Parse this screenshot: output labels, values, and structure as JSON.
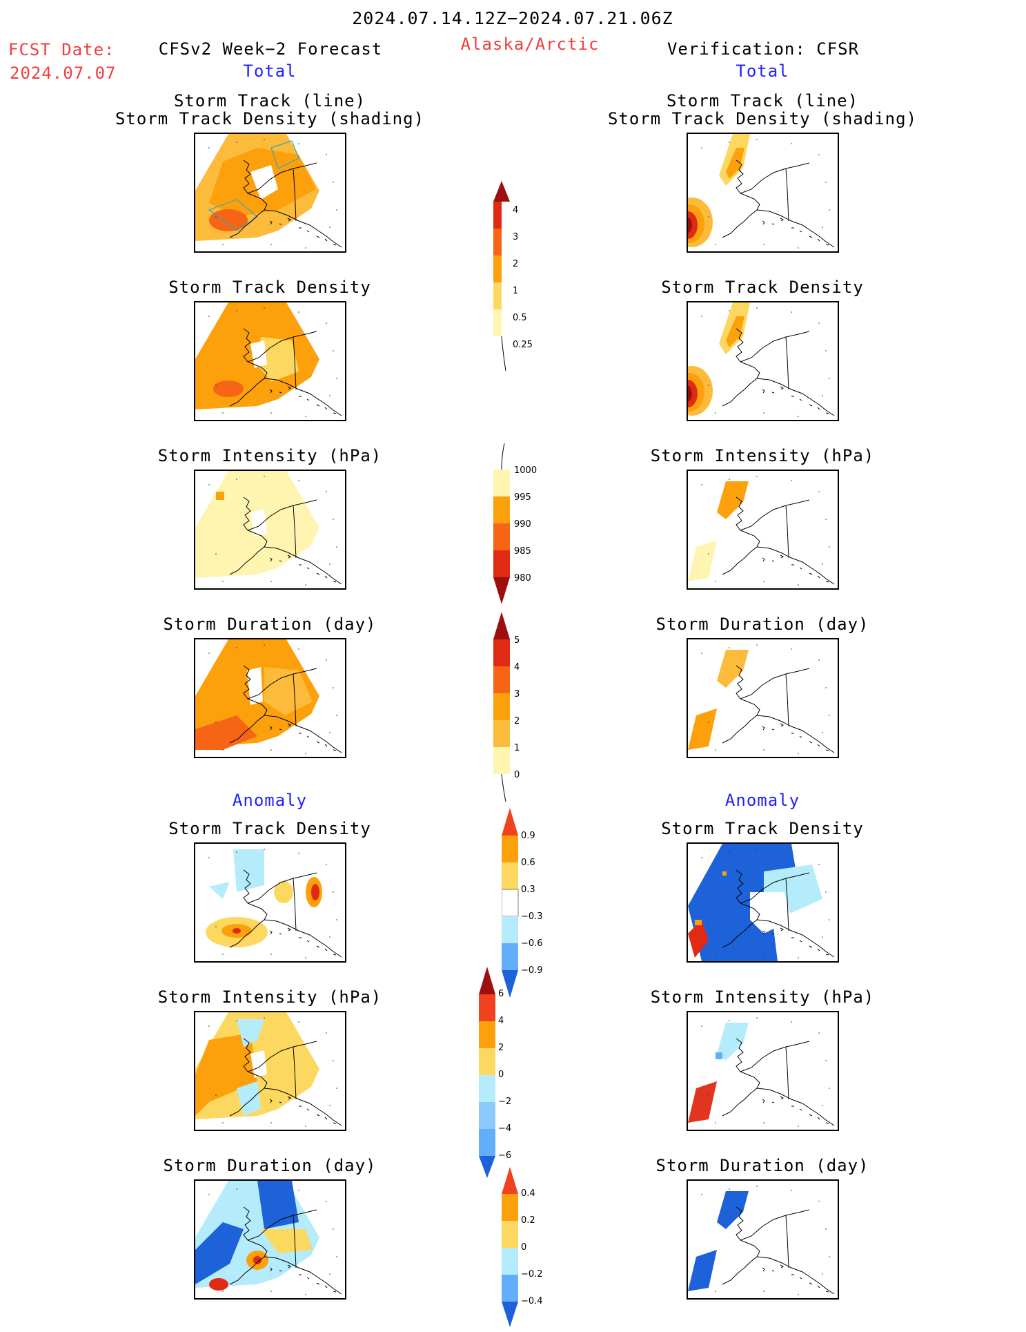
{
  "header": {
    "period": "2024.07.14.12Z−2024.07.21.06Z",
    "fcst_label": "FCST Date:",
    "fcst_date": "2024.07.07",
    "left_title": "CFSv2 Week−2 Forecast",
    "region": "Alaska/Arctic",
    "right_title": "Verification: CFSR",
    "left_total": "Total",
    "right_total": "Total"
  },
  "sections": {
    "anomaly_left": "Anomaly",
    "anomaly_right": "Anomaly"
  },
  "panels": {
    "track_line": "Storm Track (line)",
    "track_density_shading": "Storm Track Density (shading)",
    "track_density": "Storm Track Density",
    "intensity": "Storm Intensity (hPa)",
    "duration": "Storm Duration (day)"
  },
  "colorbars": {
    "density": [
      "4",
      "3",
      "2",
      "1",
      "0.5",
      "0.25"
    ],
    "intensity": [
      "1000",
      "995",
      "990",
      "985",
      "980"
    ],
    "duration": [
      "5",
      "4",
      "3",
      "2",
      "1",
      "0"
    ],
    "anom_density": [
      "0.9",
      "0.6",
      "0.3",
      "−0.3",
      "−0.6",
      "−0.9"
    ],
    "anom_intensity": [
      "6",
      "4",
      "2",
      "0",
      "−2",
      "−4",
      "−6"
    ],
    "anom_duration": [
      "0.4",
      "0.2",
      "0",
      "−0.2",
      "−0.4"
    ]
  },
  "colors": {
    "light_yellow": "#fff5b0",
    "yellow": "#fdd860",
    "light_orange": "#fdbb3c",
    "orange": "#fca10c",
    "dark_orange": "#f66416",
    "red": "#e02a14",
    "dark_red": "#9e0e0e",
    "light_blue": "#b4ecfc",
    "blue": "#62aefa",
    "dark_blue": "#1d62d8",
    "track_line": "#34a8b8"
  }
}
